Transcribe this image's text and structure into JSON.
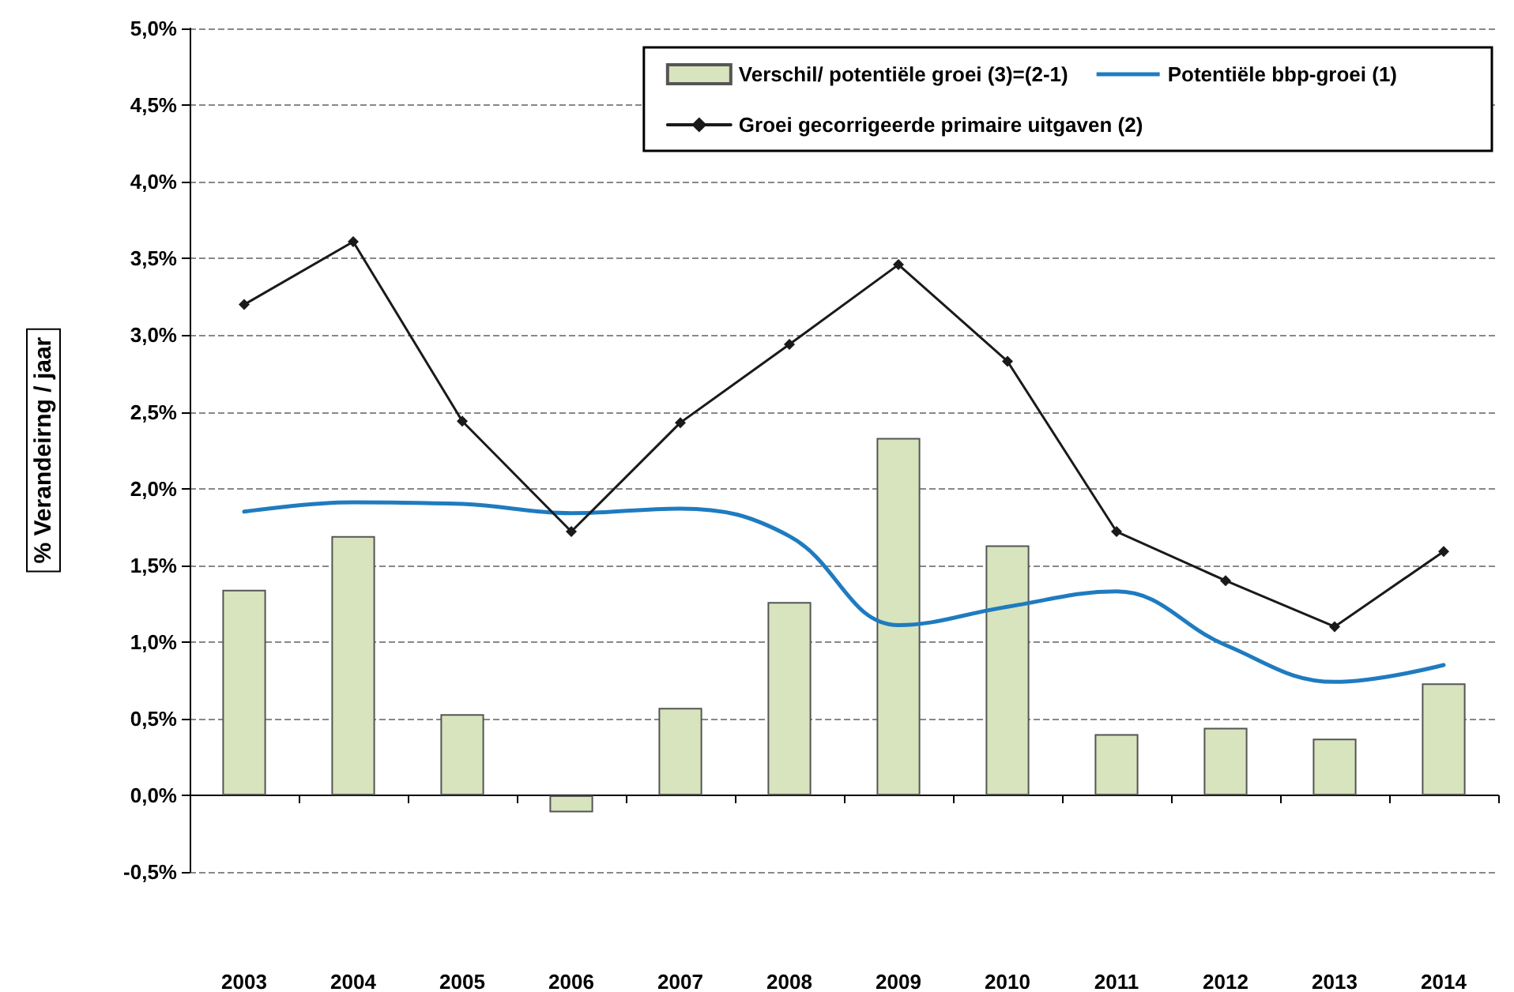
{
  "chart_data": {
    "type": "bar",
    "ylabel": "% Verandeirng / jaar",
    "categories": [
      "2003",
      "2004",
      "2005",
      "2006",
      "2007",
      "2008",
      "2009",
      "2010",
      "2011",
      "2012",
      "2013",
      "2014"
    ],
    "series": [
      {
        "name": "Verschil/ potentiële groei (3)=(2-1)",
        "color": "#d7e4bd",
        "values": [
          1.34,
          1.69,
          0.53,
          -0.11,
          0.57,
          1.26,
          2.33,
          1.63,
          0.4,
          0.44,
          0.37,
          0.73
        ]
      },
      {
        "name": "Potentiële bbp-groei (1)",
        "type": "line",
        "color": "#1f7bc0",
        "marker": "none",
        "values": [
          1.85,
          1.91,
          1.9,
          1.84,
          1.87,
          1.69,
          1.11,
          1.23,
          1.33,
          0.98,
          0.74,
          0.85
        ]
      },
      {
        "name": "Groei gecorrigeerde primaire uitgaven (2)",
        "type": "line",
        "color": "#1a1a1a",
        "marker": "diamond",
        "values": [
          3.2,
          3.61,
          2.44,
          1.72,
          2.43,
          2.94,
          3.46,
          2.83,
          1.72,
          1.4,
          1.1,
          1.59
        ]
      }
    ],
    "ylim": [
      -0.5,
      5.0
    ],
    "yticks": [
      {
        "value": -0.5,
        "label": "-0,5%"
      },
      {
        "value": 0,
        "label": "0,0%"
      },
      {
        "value": 0.5,
        "label": "0,5%"
      },
      {
        "value": 1,
        "label": "1,0%"
      },
      {
        "value": 1.5,
        "label": "1,5%"
      },
      {
        "value": 2,
        "label": "2,0%"
      },
      {
        "value": 2.5,
        "label": "2,5%"
      },
      {
        "value": 3,
        "label": "3,0%"
      },
      {
        "value": 3.5,
        "label": "3,5%"
      },
      {
        "value": 4,
        "label": "4,0%"
      },
      {
        "value": 4.5,
        "label": "4,5%"
      },
      {
        "value": 5,
        "label": "5,0%"
      }
    ],
    "grid": "y",
    "legend": "top right",
    "line_style": "solid"
  }
}
